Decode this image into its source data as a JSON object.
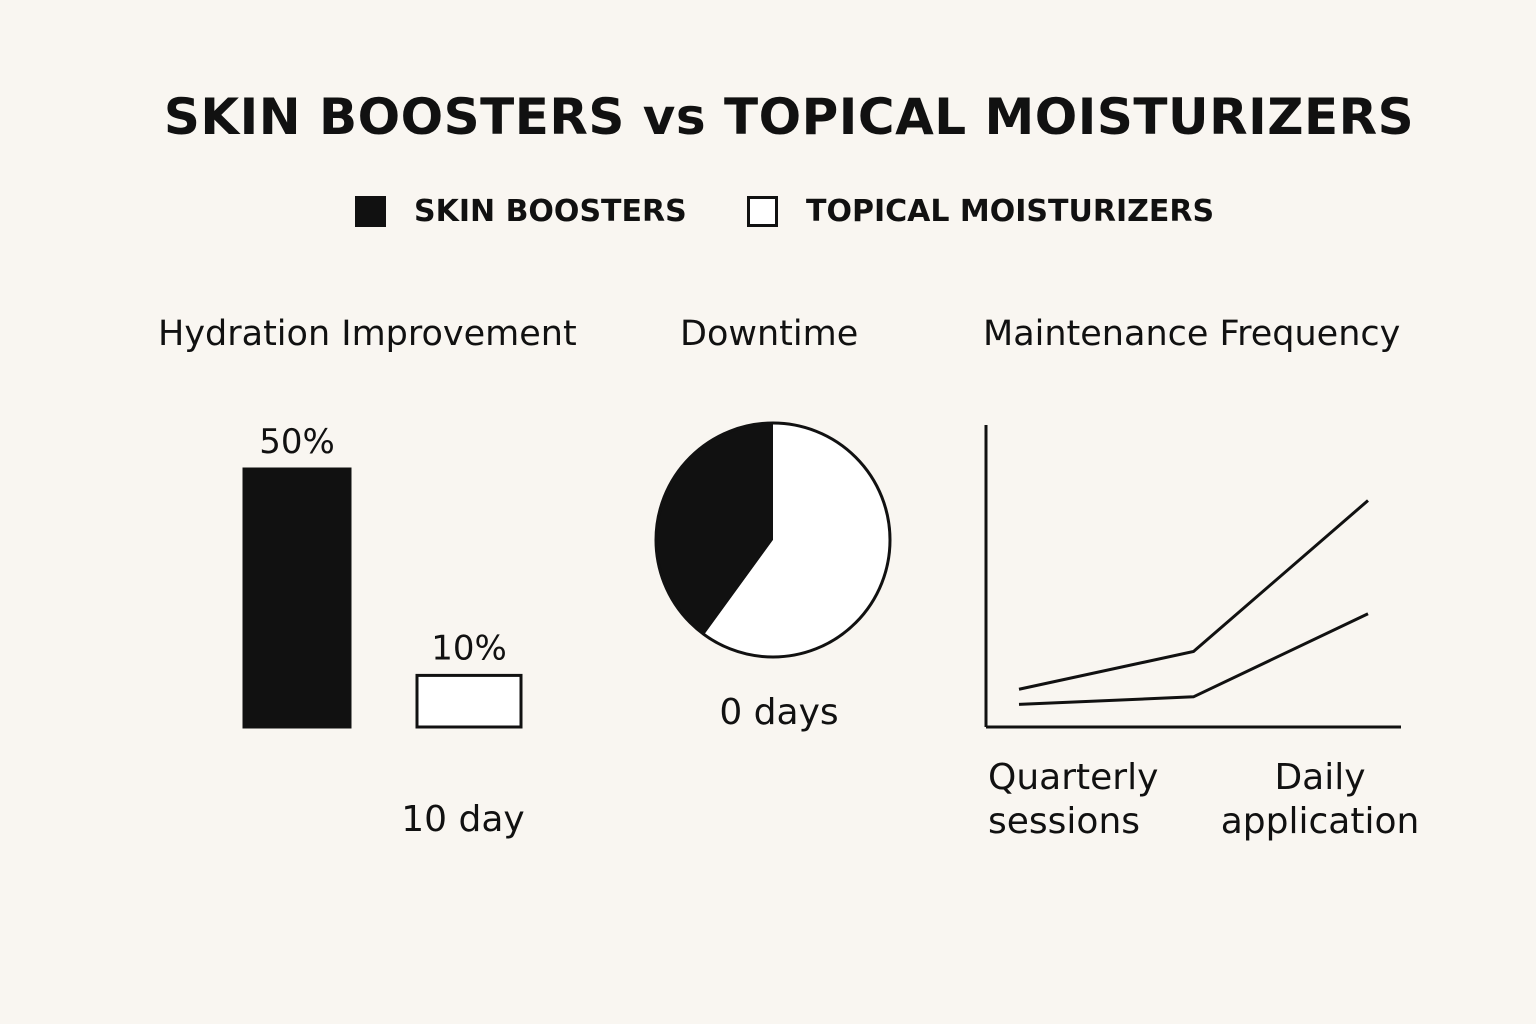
{
  "title": "SKIN BOOSTERS vs TOPICAL MOISTURIZERS",
  "legend": [
    {
      "label": "SKIN BOOSTERS",
      "fill": "#111111"
    },
    {
      "label": "TOPICAL MOISTURIZERS",
      "fill": "#ffffff"
    }
  ],
  "colors": {
    "ink": "#111111",
    "paper": "#f9f6f1",
    "white": "#ffffff"
  },
  "chart_data": [
    {
      "type": "bar",
      "title": "Hydration Improvement",
      "categories": [
        "SKIN BOOSTERS",
        "TOPICAL MOISTURIZERS"
      ],
      "values": [
        50,
        10
      ],
      "data_labels": [
        "50%",
        "10%"
      ],
      "ylim": [
        0,
        50
      ],
      "note": "10 day"
    },
    {
      "type": "pie",
      "title": "Downtime",
      "slices": [
        {
          "name": "SKIN BOOSTERS",
          "value": 40
        },
        {
          "name": "TOPICAL MOISTURIZERS",
          "value": 60
        }
      ],
      "caption": "0 days"
    },
    {
      "type": "line",
      "title": "Maintenance Frequency",
      "x": [
        0,
        1,
        2
      ],
      "series": [
        {
          "name": "upper",
          "values": [
            10,
            20,
            60
          ]
        },
        {
          "name": "lower",
          "values": [
            6,
            8,
            30
          ]
        }
      ],
      "xlim": [
        0,
        2
      ],
      "ylim": [
        0,
        80
      ],
      "x_labels": [
        {
          "lines": [
            "Quarterly",
            "sessions"
          ]
        },
        {
          "lines": [
            "Daily",
            "application"
          ]
        }
      ]
    }
  ]
}
